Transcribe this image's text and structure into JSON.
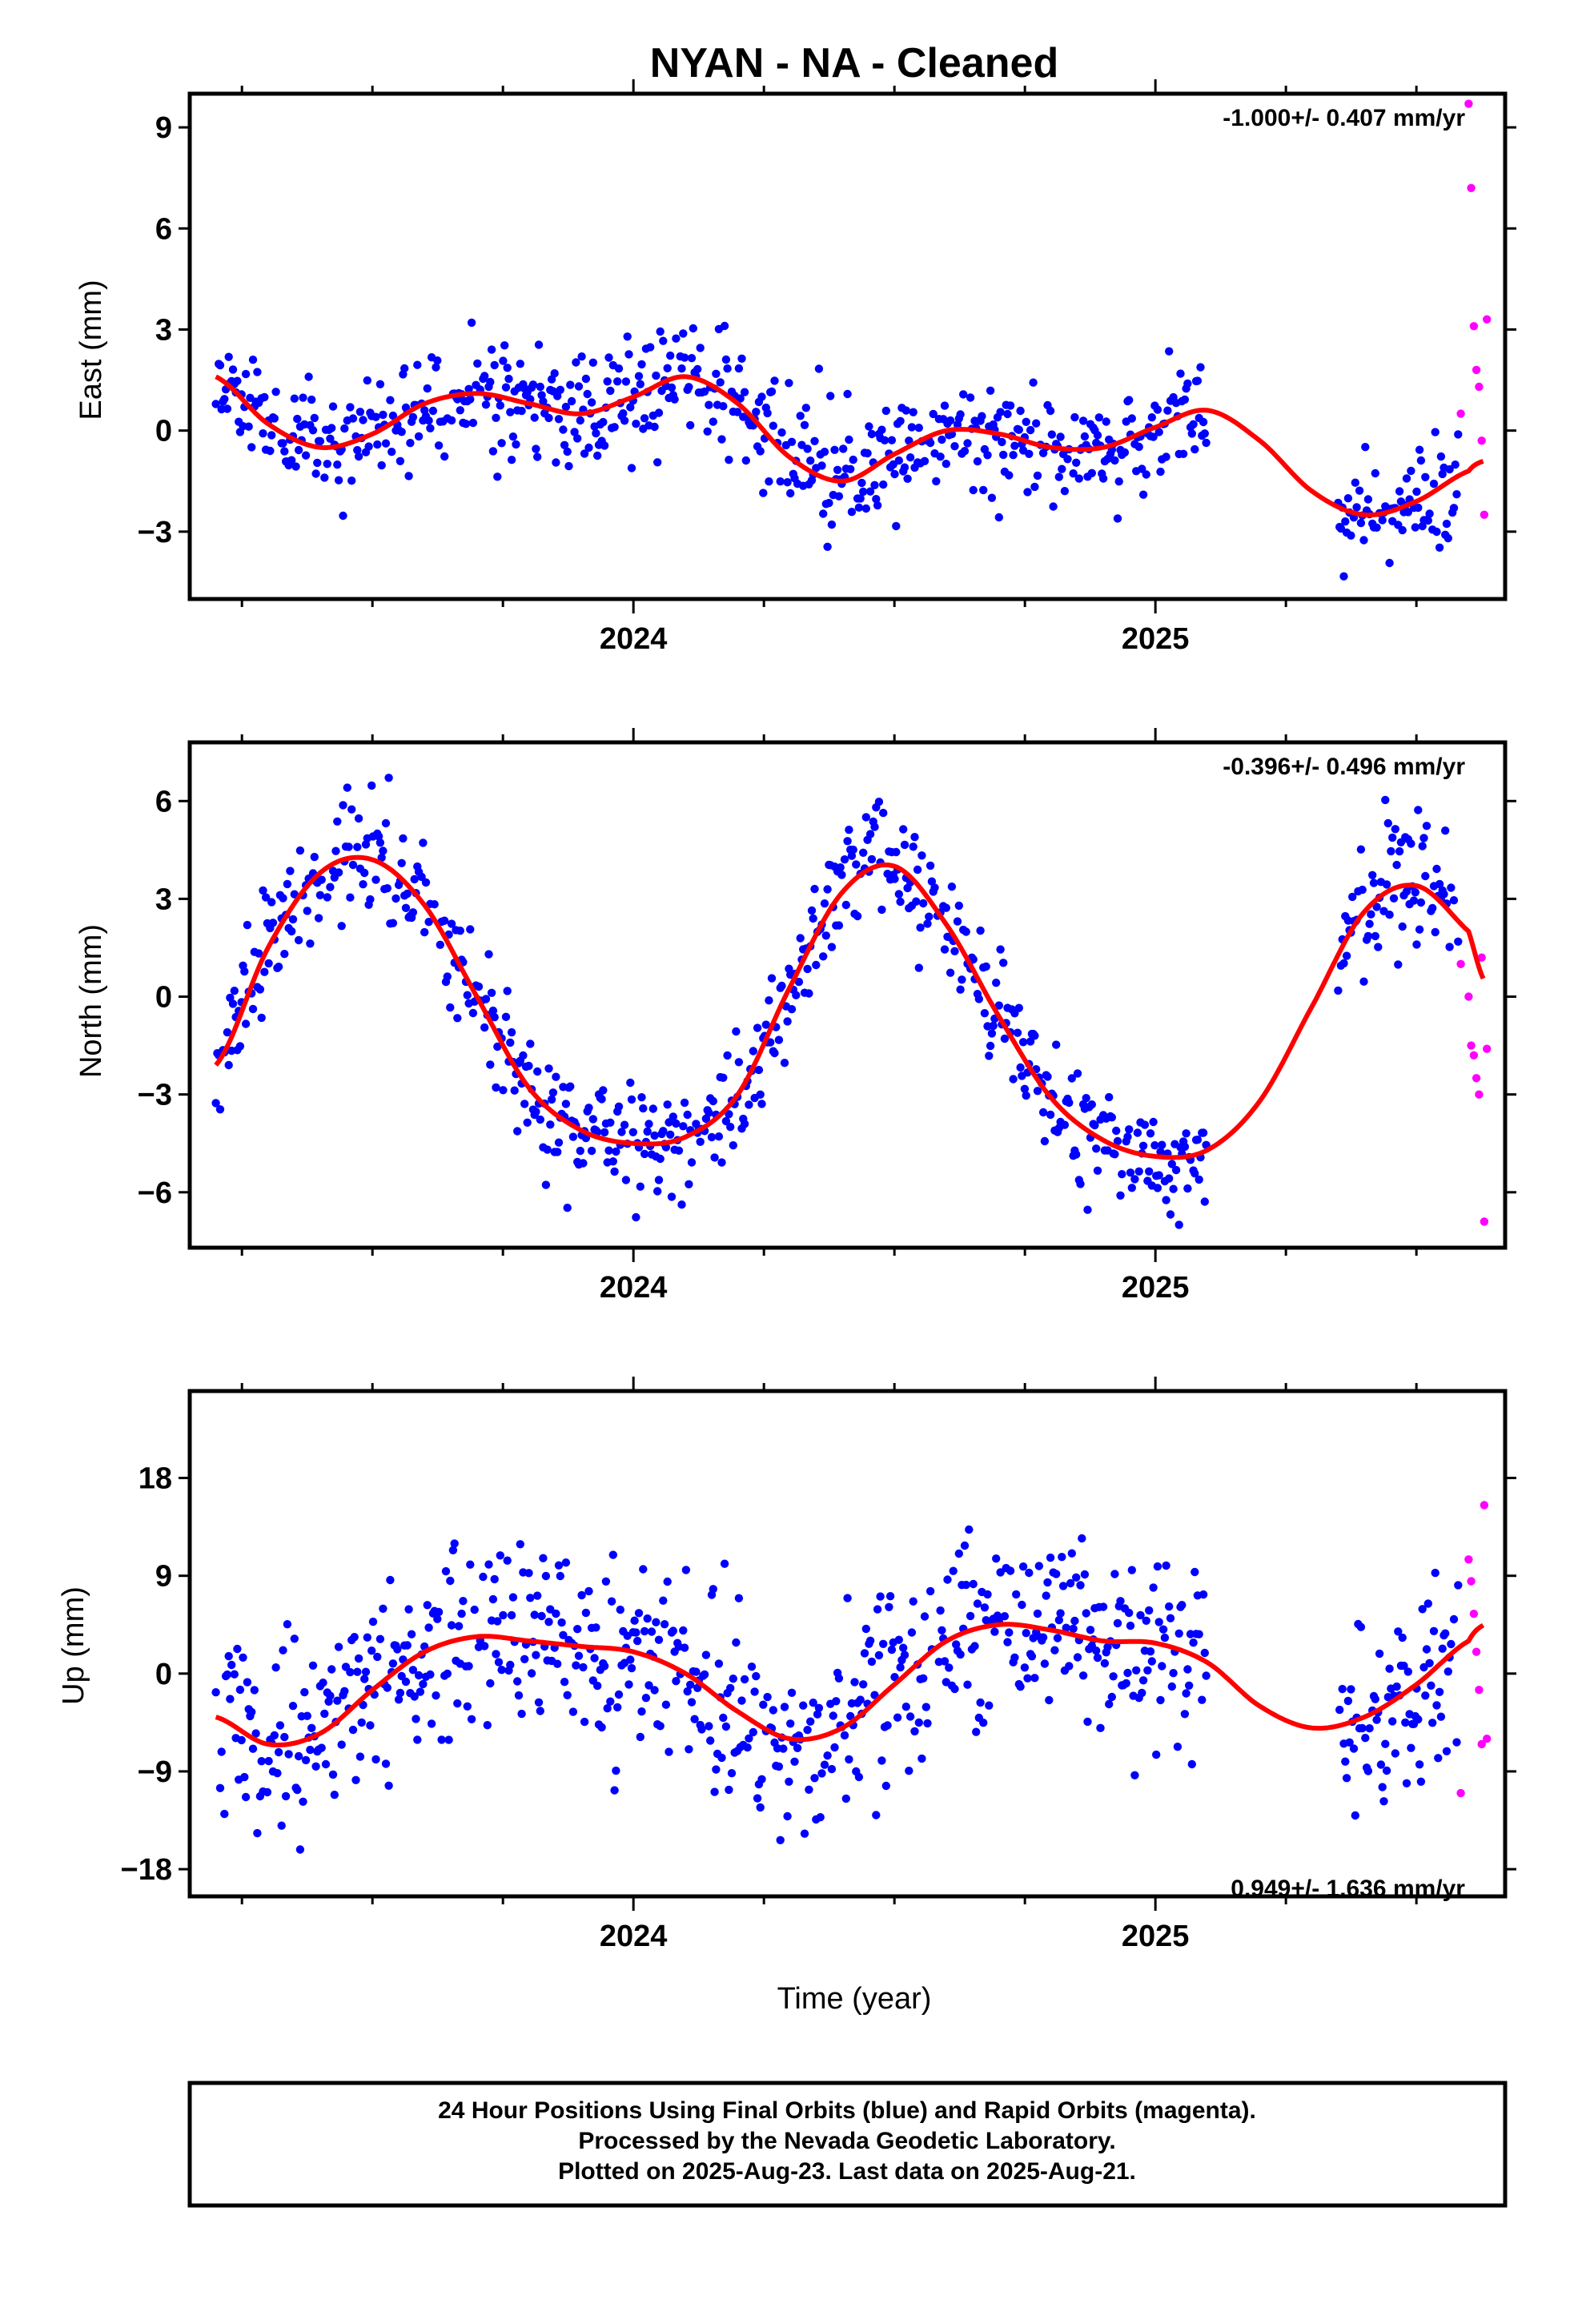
{
  "title": "NYAN  - NA - Cleaned",
  "colors": {
    "final": "#0000ff",
    "rapid": "#ff00ff",
    "fit": "#ff0000",
    "frame": "#000000"
  },
  "footer": {
    "line1": "24 Hour Positions Using Final Orbits (blue) and Rapid Orbits (magenta).",
    "line2": "Processed by the Nevada Geodetic Laboratory.",
    "line3": "Plotted on 2025-Aug-23. Last data on 2025-Aug-21."
  },
  "chart_data": [
    {
      "type": "scatter",
      "ylabel": "East (mm)",
      "rate": "-1.000+/- 0.407 mm/yr",
      "rate_position": "top-right",
      "xlim": [
        2023.15,
        2025.67
      ],
      "ylim": [
        -5,
        10
      ],
      "yticks": [
        -3,
        0,
        3,
        6,
        9
      ],
      "xtick_labels": [
        "2024",
        "2025"
      ],
      "xticks": [
        2024,
        2025
      ],
      "seasonal": {
        "mean": -0.4,
        "trend": -1.0,
        "a1": 0.4,
        "p1": 0.4,
        "a2": 0.9,
        "p2": 1.0,
        "noise": 0.85,
        "seed": 11
      },
      "fit_series": {
        "name": "",
        "x": [
          2023.2,
          2023.3,
          2023.4,
          2023.5,
          2023.6,
          2023.7,
          2023.8,
          2023.9,
          2024.0,
          2024.1,
          2024.2,
          2024.3,
          2024.4,
          2024.5,
          2024.6,
          2024.7,
          2024.8,
          2024.9,
          2025.0,
          2025.1,
          2025.2,
          2025.3,
          2025.4,
          2025.5,
          2025.6,
          2025.63
        ],
        "values": [
          1.6,
          0.2,
          -0.5,
          -0.1,
          0.8,
          1.1,
          0.8,
          0.5,
          1.0,
          1.6,
          0.8,
          -0.8,
          -1.5,
          -0.7,
          0.0,
          -0.1,
          -0.5,
          -0.5,
          0.1,
          0.6,
          -0.3,
          -1.8,
          -2.5,
          -2.1,
          -1.2,
          -0.9
        ]
      },
      "final_groups": [
        [
          2023.2,
          2025.1
        ],
        [
          2025.35,
          2025.58
        ]
      ],
      "rapid_x": [
        2025.585,
        2025.6,
        2025.605,
        2025.61,
        2025.615,
        2025.62,
        2025.625,
        2025.63,
        2025.635
      ],
      "rapid_values": [
        0.5,
        9.7,
        7.2,
        3.1,
        1.8,
        1.3,
        -0.3,
        -2.5,
        3.3
      ]
    },
    {
      "type": "scatter",
      "ylabel": "North (mm)",
      "rate": "-0.396+/- 0.496 mm/yr",
      "rate_position": "top-right",
      "xlim": [
        2023.15,
        2025.67
      ],
      "ylim": [
        -7.7,
        7.8
      ],
      "yticks": [
        -6,
        -3,
        0,
        3,
        6
      ],
      "xtick_labels": [
        "2024",
        "2025"
      ],
      "xticks": [
        2024,
        2025
      ],
      "seasonal": {
        "mean": -0.2,
        "trend": -0.4,
        "a1": 4.4,
        "p1": 0.23,
        "a2": 0.0,
        "p2": 0.0,
        "noise": 0.9,
        "seed": 23
      },
      "fit_series": {
        "name": "",
        "x": [
          2023.2,
          2023.3,
          2023.4,
          2023.5,
          2023.6,
          2023.7,
          2023.8,
          2023.9,
          2024.0,
          2024.1,
          2024.2,
          2024.3,
          2024.4,
          2024.5,
          2024.6,
          2024.7,
          2024.8,
          2024.9,
          2025.0,
          2025.1,
          2025.2,
          2025.3,
          2025.4,
          2025.5,
          2025.6,
          2025.63
        ],
        "values": [
          -2.1,
          1.5,
          3.8,
          4.2,
          2.8,
          0.0,
          -2.8,
          -4.1,
          -4.5,
          -4.3,
          -3.0,
          0.3,
          3.2,
          4.0,
          2.2,
          -0.6,
          -3.1,
          -4.4,
          -4.9,
          -4.7,
          -3.2,
          -0.3,
          2.6,
          3.4,
          2.0,
          0.5
        ]
      },
      "final_groups": [
        [
          2023.2,
          2025.1
        ],
        [
          2025.35,
          2025.58
        ]
      ],
      "rapid_x": [
        2025.585,
        2025.6,
        2025.605,
        2025.61,
        2025.615,
        2025.62,
        2025.625,
        2025.63,
        2025.635
      ],
      "rapid_values": [
        1.0,
        0.0,
        -1.5,
        -1.8,
        -2.5,
        -3.0,
        1.2,
        -6.9,
        -1.6
      ]
    },
    {
      "type": "scatter",
      "ylabel": "Up (mm)",
      "rate": "0.949+/- 1.636 mm/yr",
      "rate_position": "bottom-right",
      "xlim": [
        2023.15,
        2025.67
      ],
      "ylim": [
        -20.5,
        26
      ],
      "yticks": [
        -18,
        -9,
        0,
        9,
        18
      ],
      "xtick_labels": [
        "2024",
        "2025"
      ],
      "xticks": [
        2024,
        2025
      ],
      "seasonal": {
        "mean": -0.5,
        "trend": 0.95,
        "a1": 4.5,
        "p1": 0.9,
        "a2": 2.0,
        "p2": 0.2,
        "noise": 4.2,
        "seed": 37
      },
      "fit_series": {
        "name": "",
        "x": [
          2023.2,
          2023.3,
          2023.4,
          2023.5,
          2023.6,
          2023.7,
          2023.8,
          2023.9,
          2024.0,
          2024.1,
          2024.2,
          2024.3,
          2024.4,
          2024.5,
          2024.6,
          2024.7,
          2024.8,
          2024.9,
          2025.0,
          2025.1,
          2025.2,
          2025.3,
          2025.4,
          2025.5,
          2025.6,
          2025.63
        ],
        "values": [
          -4.0,
          -6.5,
          -5.5,
          -1.5,
          2.0,
          3.4,
          3.0,
          2.5,
          2.0,
          0.0,
          -3.5,
          -6.0,
          -5.0,
          -1.0,
          3.0,
          4.5,
          4.0,
          3.0,
          2.8,
          1.0,
          -3.0,
          -5.0,
          -4.0,
          -1.0,
          3.0,
          4.5
        ]
      },
      "final_groups": [
        [
          2023.2,
          2025.1
        ],
        [
          2025.35,
          2025.58
        ]
      ],
      "rapid_x": [
        2025.585,
        2025.6,
        2025.605,
        2025.61,
        2025.615,
        2025.62,
        2025.625,
        2025.63,
        2025.635
      ],
      "rapid_values": [
        -11.0,
        10.5,
        8.5,
        5.5,
        2.0,
        -1.5,
        -6.5,
        15.5,
        -6.0
      ]
    }
  ],
  "xlabel": "Time (year)"
}
